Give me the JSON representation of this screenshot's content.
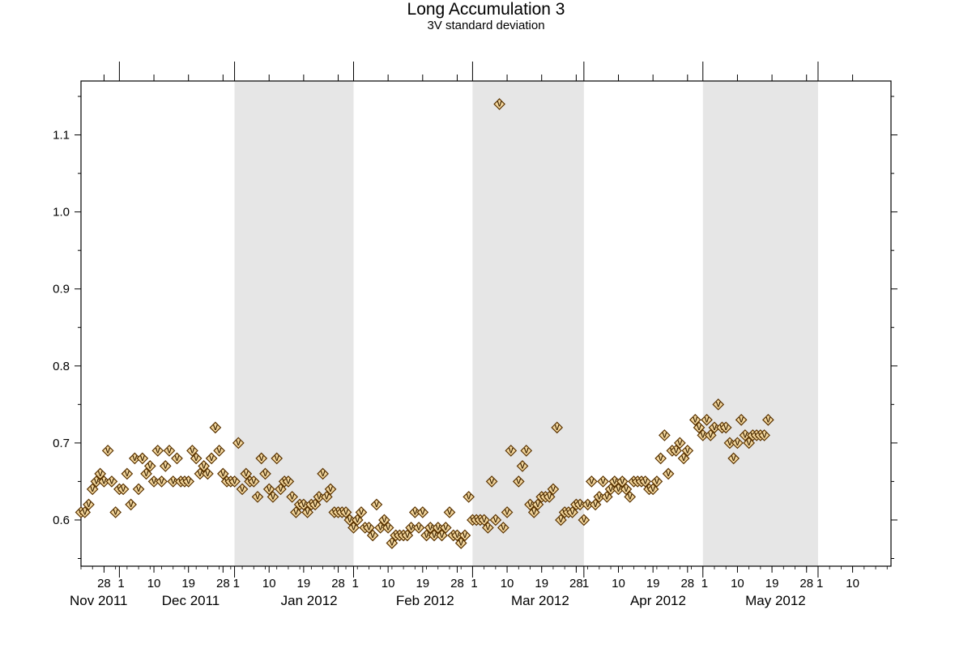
{
  "chart_data": {
    "type": "scatter",
    "title": "Long Accumulation 3",
    "subtitle": "3V standard deviation",
    "xlabel": "",
    "ylabel": "",
    "x_type": "date",
    "xlim": [
      "2011-10-22",
      "2012-05-20"
    ],
    "ylim": [
      0.54,
      1.17
    ],
    "y_ticks": [
      0.6,
      0.7,
      0.8,
      0.9,
      1.0,
      1.1
    ],
    "y_tick_labels": [
      "0.6",
      "0.7",
      "0.8",
      "0.9",
      "1.0",
      "1.1"
    ],
    "grid": false,
    "legend": "none",
    "marker": {
      "shape": "diamond",
      "letter": "V",
      "fill": "#f3d69c",
      "stroke": "#5a3300"
    },
    "shaded_band_color": "#e6e6e6",
    "shaded_months": [
      [
        "2011-12-01",
        "2012-01-01"
      ],
      [
        "2012-02-01",
        "2012-03-01"
      ],
      [
        "2012-04-01",
        "2012-05-01"
      ]
    ],
    "x_ticks": [
      {
        "date": "2011-10-28",
        "label": "28"
      },
      {
        "date": "2011-11-01",
        "label": "1"
      },
      {
        "date": "2011-11-10",
        "label": "10"
      },
      {
        "date": "2011-11-19",
        "label": "19"
      },
      {
        "date": "2011-11-28",
        "label": "28"
      },
      {
        "date": "2011-12-01",
        "label": "1"
      },
      {
        "date": "2011-12-10",
        "label": "10"
      },
      {
        "date": "2011-12-19",
        "label": "19"
      },
      {
        "date": "2011-12-28",
        "label": "28"
      },
      {
        "date": "2012-01-01",
        "label": "1"
      },
      {
        "date": "2012-01-10",
        "label": "10"
      },
      {
        "date": "2012-01-19",
        "label": "19"
      },
      {
        "date": "2012-01-28",
        "label": "28"
      },
      {
        "date": "2012-02-01",
        "label": "1"
      },
      {
        "date": "2012-02-10",
        "label": "10"
      },
      {
        "date": "2012-02-19",
        "label": "19"
      },
      {
        "date": "2012-02-28",
        "label": "28"
      },
      {
        "date": "2012-03-01",
        "label": "1"
      },
      {
        "date": "2012-03-10",
        "label": "10"
      },
      {
        "date": "2012-03-19",
        "label": "19"
      },
      {
        "date": "2012-03-28",
        "label": "28"
      },
      {
        "date": "2012-04-01",
        "label": "1"
      },
      {
        "date": "2012-04-10",
        "label": "10"
      },
      {
        "date": "2012-04-19",
        "label": "19"
      },
      {
        "date": "2012-04-28",
        "label": "28"
      },
      {
        "date": "2012-05-01",
        "label": "1"
      },
      {
        "date": "2012-05-10",
        "label": "10"
      }
    ],
    "month_labels": [
      {
        "date": "2011-10-22",
        "label": "Nov 2011"
      },
      {
        "date": "2011-11-15",
        "label": "Dec 2011"
      },
      {
        "date": "2011-12-16",
        "label": "Jan 2012"
      },
      {
        "date": "2012-01-15",
        "label": "Feb 2012"
      },
      {
        "date": "2012-02-14",
        "label": "Mar 2012"
      },
      {
        "date": "2012-03-16",
        "label": "Apr 2012"
      },
      {
        "date": "2012-04-15",
        "label": "May 2012"
      }
    ],
    "series": [
      {
        "points": [
          [
            "2011-10-22",
            0.61
          ],
          [
            "2011-10-23",
            0.61
          ],
          [
            "2011-10-24",
            0.62
          ],
          [
            "2011-10-25",
            0.64
          ],
          [
            "2011-10-26",
            0.65
          ],
          [
            "2011-10-27",
            0.66
          ],
          [
            "2011-10-28",
            0.65
          ],
          [
            "2011-10-29",
            0.69
          ],
          [
            "2011-10-30",
            0.65
          ],
          [
            "2011-10-31",
            0.61
          ],
          [
            "2011-11-01",
            0.64
          ],
          [
            "2011-11-02",
            0.64
          ],
          [
            "2011-11-03",
            0.66
          ],
          [
            "2011-11-04",
            0.62
          ],
          [
            "2011-11-05",
            0.68
          ],
          [
            "2011-11-06",
            0.64
          ],
          [
            "2011-11-07",
            0.68
          ],
          [
            "2011-11-08",
            0.66
          ],
          [
            "2011-11-09",
            0.67
          ],
          [
            "2011-11-10",
            0.65
          ],
          [
            "2011-11-11",
            0.69
          ],
          [
            "2011-11-12",
            0.65
          ],
          [
            "2011-11-13",
            0.67
          ],
          [
            "2011-11-14",
            0.69
          ],
          [
            "2011-11-15",
            0.65
          ],
          [
            "2011-11-16",
            0.68
          ],
          [
            "2011-11-17",
            0.65
          ],
          [
            "2011-11-18",
            0.65
          ],
          [
            "2011-11-19",
            0.65
          ],
          [
            "2011-11-20",
            0.69
          ],
          [
            "2011-11-21",
            0.68
          ],
          [
            "2011-11-22",
            0.66
          ],
          [
            "2011-11-23",
            0.67
          ],
          [
            "2011-11-24",
            0.66
          ],
          [
            "2011-11-25",
            0.68
          ],
          [
            "2011-11-26",
            0.72
          ],
          [
            "2011-11-27",
            0.69
          ],
          [
            "2011-11-28",
            0.66
          ],
          [
            "2011-11-29",
            0.65
          ],
          [
            "2011-11-30",
            0.65
          ],
          [
            "2011-12-01",
            0.65
          ],
          [
            "2011-12-02",
            0.7
          ],
          [
            "2011-12-03",
            0.64
          ],
          [
            "2011-12-04",
            0.66
          ],
          [
            "2011-12-05",
            0.65
          ],
          [
            "2011-12-06",
            0.65
          ],
          [
            "2011-12-07",
            0.63
          ],
          [
            "2011-12-08",
            0.68
          ],
          [
            "2011-12-09",
            0.66
          ],
          [
            "2011-12-10",
            0.64
          ],
          [
            "2011-12-11",
            0.63
          ],
          [
            "2011-12-12",
            0.68
          ],
          [
            "2011-12-13",
            0.64
          ],
          [
            "2011-12-14",
            0.65
          ],
          [
            "2011-12-15",
            0.65
          ],
          [
            "2011-12-16",
            0.63
          ],
          [
            "2011-12-17",
            0.61
          ],
          [
            "2011-12-18",
            0.62
          ],
          [
            "2011-12-19",
            0.62
          ],
          [
            "2011-12-20",
            0.61
          ],
          [
            "2011-12-21",
            0.62
          ],
          [
            "2011-12-22",
            0.62
          ],
          [
            "2011-12-23",
            0.63
          ],
          [
            "2011-12-24",
            0.66
          ],
          [
            "2011-12-25",
            0.63
          ],
          [
            "2011-12-26",
            0.64
          ],
          [
            "2011-12-27",
            0.61
          ],
          [
            "2011-12-28",
            0.61
          ],
          [
            "2011-12-29",
            0.61
          ],
          [
            "2011-12-30",
            0.61
          ],
          [
            "2011-12-31",
            0.6
          ],
          [
            "2012-01-01",
            0.59
          ],
          [
            "2012-01-02",
            0.6
          ],
          [
            "2012-01-03",
            0.61
          ],
          [
            "2012-01-04",
            0.59
          ],
          [
            "2012-01-05",
            0.59
          ],
          [
            "2012-01-06",
            0.58
          ],
          [
            "2012-01-07",
            0.62
          ],
          [
            "2012-01-08",
            0.59
          ],
          [
            "2012-01-09",
            0.6
          ],
          [
            "2012-01-10",
            0.59
          ],
          [
            "2012-01-11",
            0.57
          ],
          [
            "2012-01-12",
            0.58
          ],
          [
            "2012-01-13",
            0.58
          ],
          [
            "2012-01-14",
            0.58
          ],
          [
            "2012-01-15",
            0.58
          ],
          [
            "2012-01-16",
            0.59
          ],
          [
            "2012-01-17",
            0.61
          ],
          [
            "2012-01-18",
            0.59
          ],
          [
            "2012-01-19",
            0.61
          ],
          [
            "2012-01-20",
            0.58
          ],
          [
            "2012-01-21",
            0.59
          ],
          [
            "2012-01-22",
            0.58
          ],
          [
            "2012-01-23",
            0.59
          ],
          [
            "2012-01-24",
            0.58
          ],
          [
            "2012-01-25",
            0.59
          ],
          [
            "2012-01-26",
            0.61
          ],
          [
            "2012-01-27",
            0.58
          ],
          [
            "2012-01-28",
            0.58
          ],
          [
            "2012-01-29",
            0.57
          ],
          [
            "2012-01-30",
            0.58
          ],
          [
            "2012-01-31",
            0.63
          ],
          [
            "2012-02-01",
            0.6
          ],
          [
            "2012-02-02",
            0.6
          ],
          [
            "2012-02-03",
            0.6
          ],
          [
            "2012-02-04",
            0.6
          ],
          [
            "2012-02-05",
            0.59
          ],
          [
            "2012-02-06",
            0.65
          ],
          [
            "2012-02-07",
            0.6
          ],
          [
            "2012-02-08",
            1.14
          ],
          [
            "2012-02-09",
            0.59
          ],
          [
            "2012-02-10",
            0.61
          ],
          [
            "2012-02-11",
            0.69
          ],
          [
            "2012-02-13",
            0.65
          ],
          [
            "2012-02-14",
            0.67
          ],
          [
            "2012-02-15",
            0.69
          ],
          [
            "2012-02-16",
            0.62
          ],
          [
            "2012-02-17",
            0.61
          ],
          [
            "2012-02-18",
            0.62
          ],
          [
            "2012-02-19",
            0.63
          ],
          [
            "2012-02-20",
            0.63
          ],
          [
            "2012-02-21",
            0.63
          ],
          [
            "2012-02-22",
            0.64
          ],
          [
            "2012-02-23",
            0.72
          ],
          [
            "2012-02-24",
            0.6
          ],
          [
            "2012-02-25",
            0.61
          ],
          [
            "2012-02-26",
            0.61
          ],
          [
            "2012-02-27",
            0.61
          ],
          [
            "2012-02-28",
            0.62
          ],
          [
            "2012-02-29",
            0.62
          ],
          [
            "2012-03-01",
            0.6
          ],
          [
            "2012-03-02",
            0.62
          ],
          [
            "2012-03-03",
            0.65
          ],
          [
            "2012-03-04",
            0.62
          ],
          [
            "2012-03-05",
            0.63
          ],
          [
            "2012-03-06",
            0.65
          ],
          [
            "2012-03-07",
            0.63
          ],
          [
            "2012-03-08",
            0.64
          ],
          [
            "2012-03-09",
            0.65
          ],
          [
            "2012-03-10",
            0.64
          ],
          [
            "2012-03-11",
            0.65
          ],
          [
            "2012-03-12",
            0.64
          ],
          [
            "2012-03-13",
            0.63
          ],
          [
            "2012-03-14",
            0.65
          ],
          [
            "2012-03-15",
            0.65
          ],
          [
            "2012-03-16",
            0.65
          ],
          [
            "2012-03-17",
            0.65
          ],
          [
            "2012-03-18",
            0.64
          ],
          [
            "2012-03-19",
            0.64
          ],
          [
            "2012-03-20",
            0.65
          ],
          [
            "2012-03-21",
            0.68
          ],
          [
            "2012-03-22",
            0.71
          ],
          [
            "2012-03-23",
            0.66
          ],
          [
            "2012-03-24",
            0.69
          ],
          [
            "2012-03-25",
            0.69
          ],
          [
            "2012-03-26",
            0.7
          ],
          [
            "2012-03-27",
            0.68
          ],
          [
            "2012-03-28",
            0.69
          ],
          [
            "2012-03-30",
            0.73
          ],
          [
            "2012-03-31",
            0.72
          ],
          [
            "2012-04-01",
            0.71
          ],
          [
            "2012-04-02",
            0.73
          ],
          [
            "2012-04-03",
            0.71
          ],
          [
            "2012-04-04",
            0.72
          ],
          [
            "2012-04-05",
            0.75
          ],
          [
            "2012-04-06",
            0.72
          ],
          [
            "2012-04-07",
            0.72
          ],
          [
            "2012-04-08",
            0.7
          ],
          [
            "2012-04-09",
            0.68
          ],
          [
            "2012-04-10",
            0.7
          ],
          [
            "2012-04-11",
            0.73
          ],
          [
            "2012-04-12",
            0.71
          ],
          [
            "2012-04-13",
            0.7
          ],
          [
            "2012-04-14",
            0.71
          ],
          [
            "2012-04-15",
            0.71
          ],
          [
            "2012-04-16",
            0.71
          ],
          [
            "2012-04-17",
            0.71
          ],
          [
            "2012-04-18",
            0.73
          ]
        ]
      }
    ]
  }
}
